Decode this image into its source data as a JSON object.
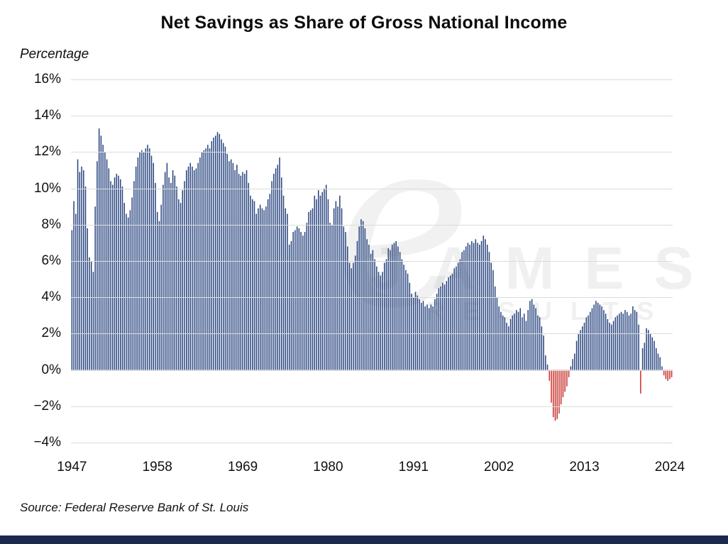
{
  "title": "Net Savings as Share of Gross National Income",
  "y_axis_title": "Percentage",
  "source": "Source: Federal Reserve Bank of St. Louis",
  "watermark": {
    "script_letter": "e",
    "line1": "JAMES",
    "line2": "RESULTS"
  },
  "colors": {
    "positive_bar": "#2a4680",
    "negative_bar": "#c9302c",
    "gridline": "#dcdcdc",
    "footer_bar": "#1b2a4d",
    "text": "#111111"
  },
  "chart_data": {
    "type": "bar",
    "title": "Net Savings as Share of Gross National Income",
    "xlabel": "",
    "ylabel": "Percentage",
    "ylim": [
      -4,
      16
    ],
    "grid": true,
    "legend": "none",
    "frequency": "quarterly",
    "start_year": 1947,
    "y_ticks": [
      {
        "value": 16,
        "label": "16%"
      },
      {
        "value": 14,
        "label": "14%"
      },
      {
        "value": 12,
        "label": "12%"
      },
      {
        "value": 10,
        "label": "10%"
      },
      {
        "value": 8,
        "label": "8%"
      },
      {
        "value": 6,
        "label": "6%"
      },
      {
        "value": 4,
        "label": "4%"
      },
      {
        "value": 2,
        "label": "2%"
      },
      {
        "value": 0,
        "label": "0%"
      },
      {
        "value": -2,
        "label": "−2%"
      },
      {
        "value": -4,
        "label": "−4%"
      }
    ],
    "x_ticks": [
      {
        "label": "1947",
        "index": 0
      },
      {
        "label": "1958",
        "index": 44
      },
      {
        "label": "1969",
        "index": 88
      },
      {
        "label": "1980",
        "index": 132
      },
      {
        "label": "1991",
        "index": 176
      },
      {
        "label": "2002",
        "index": 220
      },
      {
        "label": "2013",
        "index": 264
      },
      {
        "label": "2024",
        "index": 308
      }
    ],
    "values": [
      7.7,
      9.3,
      8.6,
      11.6,
      10.9,
      11.2,
      11.0,
      10.1,
      7.8,
      6.2,
      6.0,
      5.4,
      9.0,
      11.5,
      13.3,
      12.9,
      12.4,
      12.0,
      11.6,
      11.1,
      10.4,
      10.2,
      10.6,
      10.8,
      10.7,
      10.5,
      10.1,
      9.2,
      8.6,
      8.4,
      8.8,
      9.5,
      10.4,
      11.2,
      11.7,
      12.0,
      12.1,
      12.0,
      12.2,
      12.4,
      12.2,
      11.8,
      11.4,
      10.3,
      8.7,
      8.2,
      9.1,
      10.2,
      10.9,
      11.4,
      10.6,
      10.3,
      11.0,
      10.7,
      10.1,
      9.4,
      9.2,
      9.9,
      10.4,
      11.0,
      11.2,
      11.4,
      11.2,
      11.0,
      11.1,
      11.4,
      11.7,
      12.0,
      12.1,
      12.2,
      12.4,
      12.2,
      12.6,
      12.8,
      12.9,
      13.1,
      13.0,
      12.7,
      12.5,
      12.3,
      11.9,
      11.5,
      11.6,
      11.4,
      11.0,
      11.3,
      10.8,
      10.7,
      10.9,
      10.8,
      11.0,
      10.3,
      9.6,
      9.4,
      9.3,
      8.6,
      8.9,
      9.1,
      8.9,
      8.8,
      9.0,
      9.4,
      9.7,
      10.4,
      10.8,
      11.1,
      11.3,
      11.7,
      10.6,
      9.6,
      8.9,
      8.6,
      6.9,
      7.1,
      7.6,
      7.7,
      7.9,
      7.8,
      7.6,
      7.4,
      7.6,
      8.1,
      8.7,
      8.8,
      8.9,
      9.6,
      9.4,
      9.9,
      9.6,
      9.8,
      10.0,
      10.2,
      9.4,
      8.1,
      8.0,
      8.9,
      9.3,
      9.0,
      9.6,
      8.9,
      7.9,
      7.6,
      6.8,
      5.9,
      5.6,
      5.9,
      6.3,
      7.1,
      7.9,
      8.3,
      8.2,
      7.8,
      7.2,
      6.9,
      6.4,
      6.6,
      6.1,
      5.7,
      5.4,
      5.2,
      5.4,
      5.9,
      6.1,
      6.7,
      6.6,
      6.9,
      7.0,
      7.1,
      6.8,
      6.5,
      6.1,
      5.8,
      5.5,
      5.3,
      4.8,
      4.2,
      4.0,
      4.3,
      4.1,
      3.9,
      3.7,
      3.8,
      3.5,
      3.6,
      3.4,
      3.6,
      3.5,
      3.9,
      4.2,
      4.5,
      4.6,
      4.8,
      4.7,
      4.9,
      5.1,
      5.2,
      5.3,
      5.6,
      5.7,
      5.9,
      6.1,
      6.5,
      6.6,
      6.8,
      7.0,
      6.9,
      7.1,
      7.0,
      7.2,
      7.0,
      6.9,
      7.1,
      7.4,
      7.2,
      6.9,
      6.5,
      5.9,
      5.5,
      4.6,
      4.0,
      3.5,
      3.2,
      3.0,
      2.9,
      2.6,
      2.4,
      2.8,
      3.0,
      3.1,
      3.3,
      3.2,
      3.4,
      2.9,
      3.1,
      2.7,
      3.3,
      3.8,
      3.9,
      3.6,
      3.4,
      3.0,
      2.9,
      2.4,
      1.9,
      0.8,
      0.3,
      -0.6,
      -1.8,
      -2.6,
      -2.8,
      -2.7,
      -2.4,
      -1.9,
      -1.5,
      -1.2,
      -0.9,
      -0.4,
      0.2,
      0.6,
      0.9,
      1.6,
      2.0,
      2.2,
      2.4,
      2.6,
      2.9,
      3.0,
      3.2,
      3.4,
      3.6,
      3.8,
      3.7,
      3.6,
      3.5,
      3.3,
      3.1,
      2.8,
      2.6,
      2.5,
      2.7,
      2.9,
      3.0,
      3.1,
      3.2,
      3.1,
      3.3,
      3.2,
      3.0,
      3.1,
      3.5,
      3.3,
      3.2,
      2.5,
      -1.3,
      1.2,
      1.5,
      2.3,
      2.2,
      2.0,
      1.8,
      1.6,
      1.2,
      0.9,
      0.7,
      0.2,
      -0.3,
      -0.5,
      -0.6,
      -0.5,
      -0.4
    ]
  }
}
